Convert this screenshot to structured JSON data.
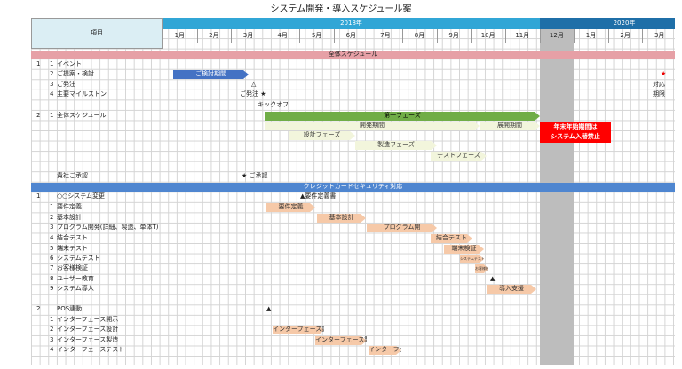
{
  "title": "システム開発・導入スケジュール案",
  "header": {
    "item": "項目",
    "years": [
      "2018年",
      "2020年"
    ],
    "months": [
      "1月",
      "2月",
      "3月",
      "4月",
      "5月",
      "6月",
      "7月",
      "8月",
      "9月",
      "10月",
      "11月",
      "12月",
      "1月",
      "2月",
      "3月"
    ]
  },
  "sections": [
    "全体スケジュール",
    "クレジットカードセキュリティ対応"
  ],
  "rows": [
    {
      "no": "1",
      "sub": "1",
      "label": "イベント"
    },
    {
      "sub": "2",
      "label": "ご提案・検討"
    },
    {
      "sub": "3",
      "label": "ご発注"
    },
    {
      "sub": "4",
      "label": "主要マイルストン"
    },
    {
      "no": "2",
      "sub": "1",
      "label": "全体スケジュール"
    },
    {
      "label": "貴社ご承認"
    },
    {
      "no": "1",
      "label": "○○システム変更"
    },
    {
      "sub": "1",
      "label": "要件定義"
    },
    {
      "sub": "2",
      "label": "基本設計"
    },
    {
      "sub": "3",
      "label": "プログラム開発(詳細、製造、単体T)"
    },
    {
      "sub": "4",
      "label": "結合テスト"
    },
    {
      "sub": "5",
      "label": "端末テスト"
    },
    {
      "sub": "6",
      "label": "システムテスト"
    },
    {
      "sub": "7",
      "label": "お客様検証"
    },
    {
      "sub": "8",
      "label": "ユーザー教育"
    },
    {
      "sub": "9",
      "label": "システム導入"
    },
    {
      "no": "2",
      "label": "POS連動"
    },
    {
      "sub": "1",
      "label": "インターフェース開示"
    },
    {
      "sub": "2",
      "label": "インターフェース設計"
    },
    {
      "sub": "3",
      "label": "インターフェース製造"
    },
    {
      "sub": "4",
      "label": "インターフェーステスト"
    }
  ],
  "bars": [
    "ご検討期間",
    "第一フェーズ",
    "開発期間",
    "展開期間",
    "設計フェーズ",
    "製造フェーズ",
    "テストフェーズ",
    "要件定義",
    "基本設計",
    "プログラム開",
    "結合テスト",
    "端末検証",
    "システムテスト",
    "お客様検証",
    "導入支援",
    "インターフェース設計",
    "インターフェース製造",
    "インターフェーステスト"
  ],
  "marks": [
    "△",
    "ご発注 ★",
    "対応",
    "期限",
    "★",
    "キックオフ",
    "★ ご承認",
    "▲要件定義書",
    "▲",
    "▲"
  ],
  "notice": [
    "年末年始期間は",
    "システム入替禁止"
  ]
}
